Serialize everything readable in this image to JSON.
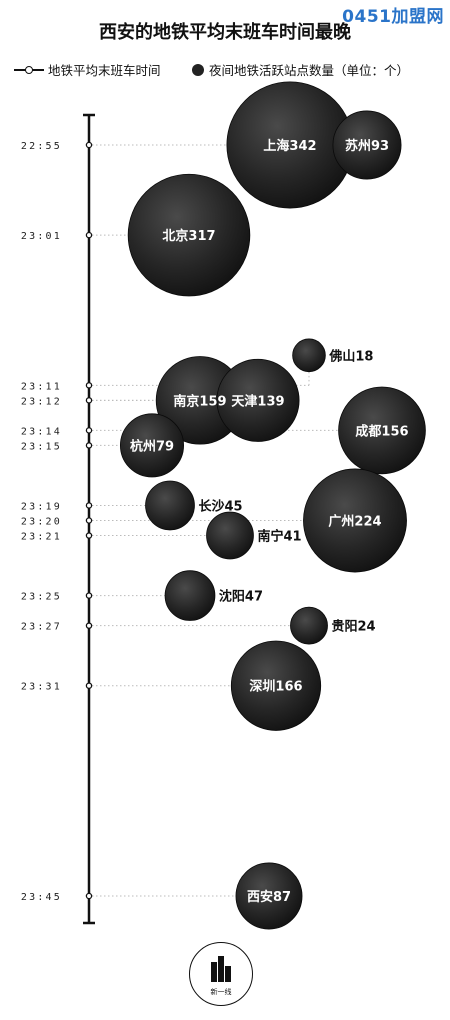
{
  "watermark": "0451加盟网",
  "title": "西安的地铁平均末班车时间最晚",
  "legend": {
    "line_label": "地铁平均末班车时间",
    "bubble_label": "夜间地铁活跃站点数量（单位：个）"
  },
  "logo": {
    "text": "新一线"
  },
  "colors": {
    "bubble": "#1e1e1e",
    "axis": "#111111",
    "guide": "#bbbbbb",
    "watermark": "#2a74c9"
  },
  "chart_data": {
    "type": "bubble",
    "y_axis": "地铁平均末班车时间",
    "size_label": "夜间地铁活跃站点数量（单位：个）",
    "time_ticks": [
      "22:55",
      "23:01",
      "23:11",
      "23:12",
      "23:14",
      "23:15",
      "23:19",
      "23:20",
      "23:21",
      "23:25",
      "23:27",
      "23:31",
      "23:45"
    ],
    "cities": [
      {
        "name": "上海",
        "time": "22:55",
        "stations": 342
      },
      {
        "name": "苏州",
        "time": "22:55",
        "stations": 93
      },
      {
        "name": "北京",
        "time": "23:01",
        "stations": 317
      },
      {
        "name": "佛山",
        "time": "23:11",
        "stations": 18
      },
      {
        "name": "南京",
        "time": "23:12",
        "stations": 159
      },
      {
        "name": "天津",
        "time": "23:12",
        "stations": 139
      },
      {
        "name": "成都",
        "time": "23:14",
        "stations": 156
      },
      {
        "name": "杭州",
        "time": "23:15",
        "stations": 79
      },
      {
        "name": "长沙",
        "time": "23:19",
        "stations": 45
      },
      {
        "name": "广州",
        "time": "23:20",
        "stations": 224
      },
      {
        "name": "南宁",
        "time": "23:21",
        "stations": 41
      },
      {
        "name": "沈阳",
        "time": "23:25",
        "stations": 47
      },
      {
        "name": "贵阳",
        "time": "23:27",
        "stations": 24
      },
      {
        "name": "深圳",
        "time": "23:31",
        "stations": 166
      },
      {
        "name": "西安",
        "time": "23:45",
        "stations": 87
      }
    ]
  }
}
